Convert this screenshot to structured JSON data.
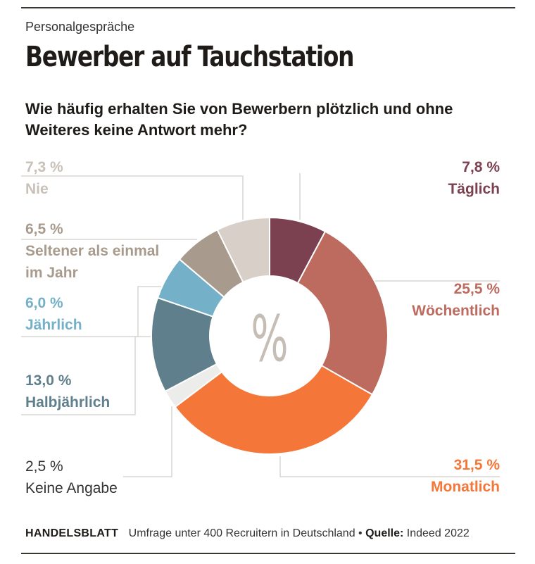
{
  "kicker": "Personalgespräche",
  "headline": "Bewerber auf Tauchstation",
  "question": "Wie häufig erhalten Sie von Bewerbern plötzlich und ohne Weiteres keine Antwort mehr?",
  "center_symbol": "%",
  "footer": {
    "brand": "HANDELSBLATT",
    "survey": "Umfrage unter 400 Recruitern in Deutschland •",
    "source_label": "Quelle:",
    "source": "Indeed 2022"
  },
  "chart_data": {
    "type": "pie",
    "donut": true,
    "unit": "%",
    "slices": [
      {
        "label": "Täglich",
        "value": 7.8,
        "value_label": "7,8 %",
        "color": "#7b4150"
      },
      {
        "label": "Wöchentlich",
        "value": 25.5,
        "value_label": "25,5 %",
        "color": "#bd6b5f"
      },
      {
        "label": "Monatlich",
        "value": 31.5,
        "value_label": "31,5 %",
        "color": "#f47638"
      },
      {
        "label": "Keine Angabe",
        "value": 2.5,
        "value_label": "2,5 %",
        "color": "#ececea"
      },
      {
        "label": "Halbjährlich",
        "value": 13.0,
        "value_label": "13,0 %",
        "color": "#607f8c"
      },
      {
        "label": "Jährlich",
        "value": 6.0,
        "value_label": "6,0 %",
        "color": "#74b0c8"
      },
      {
        "label": "Seltener als einmal im Jahr",
        "value": 6.5,
        "value_label": "6,5 %",
        "color": "#a89b8e"
      },
      {
        "label": "Nie",
        "value": 7.3,
        "value_label": "7,3 %",
        "color": "#d8cfc8"
      }
    ]
  }
}
